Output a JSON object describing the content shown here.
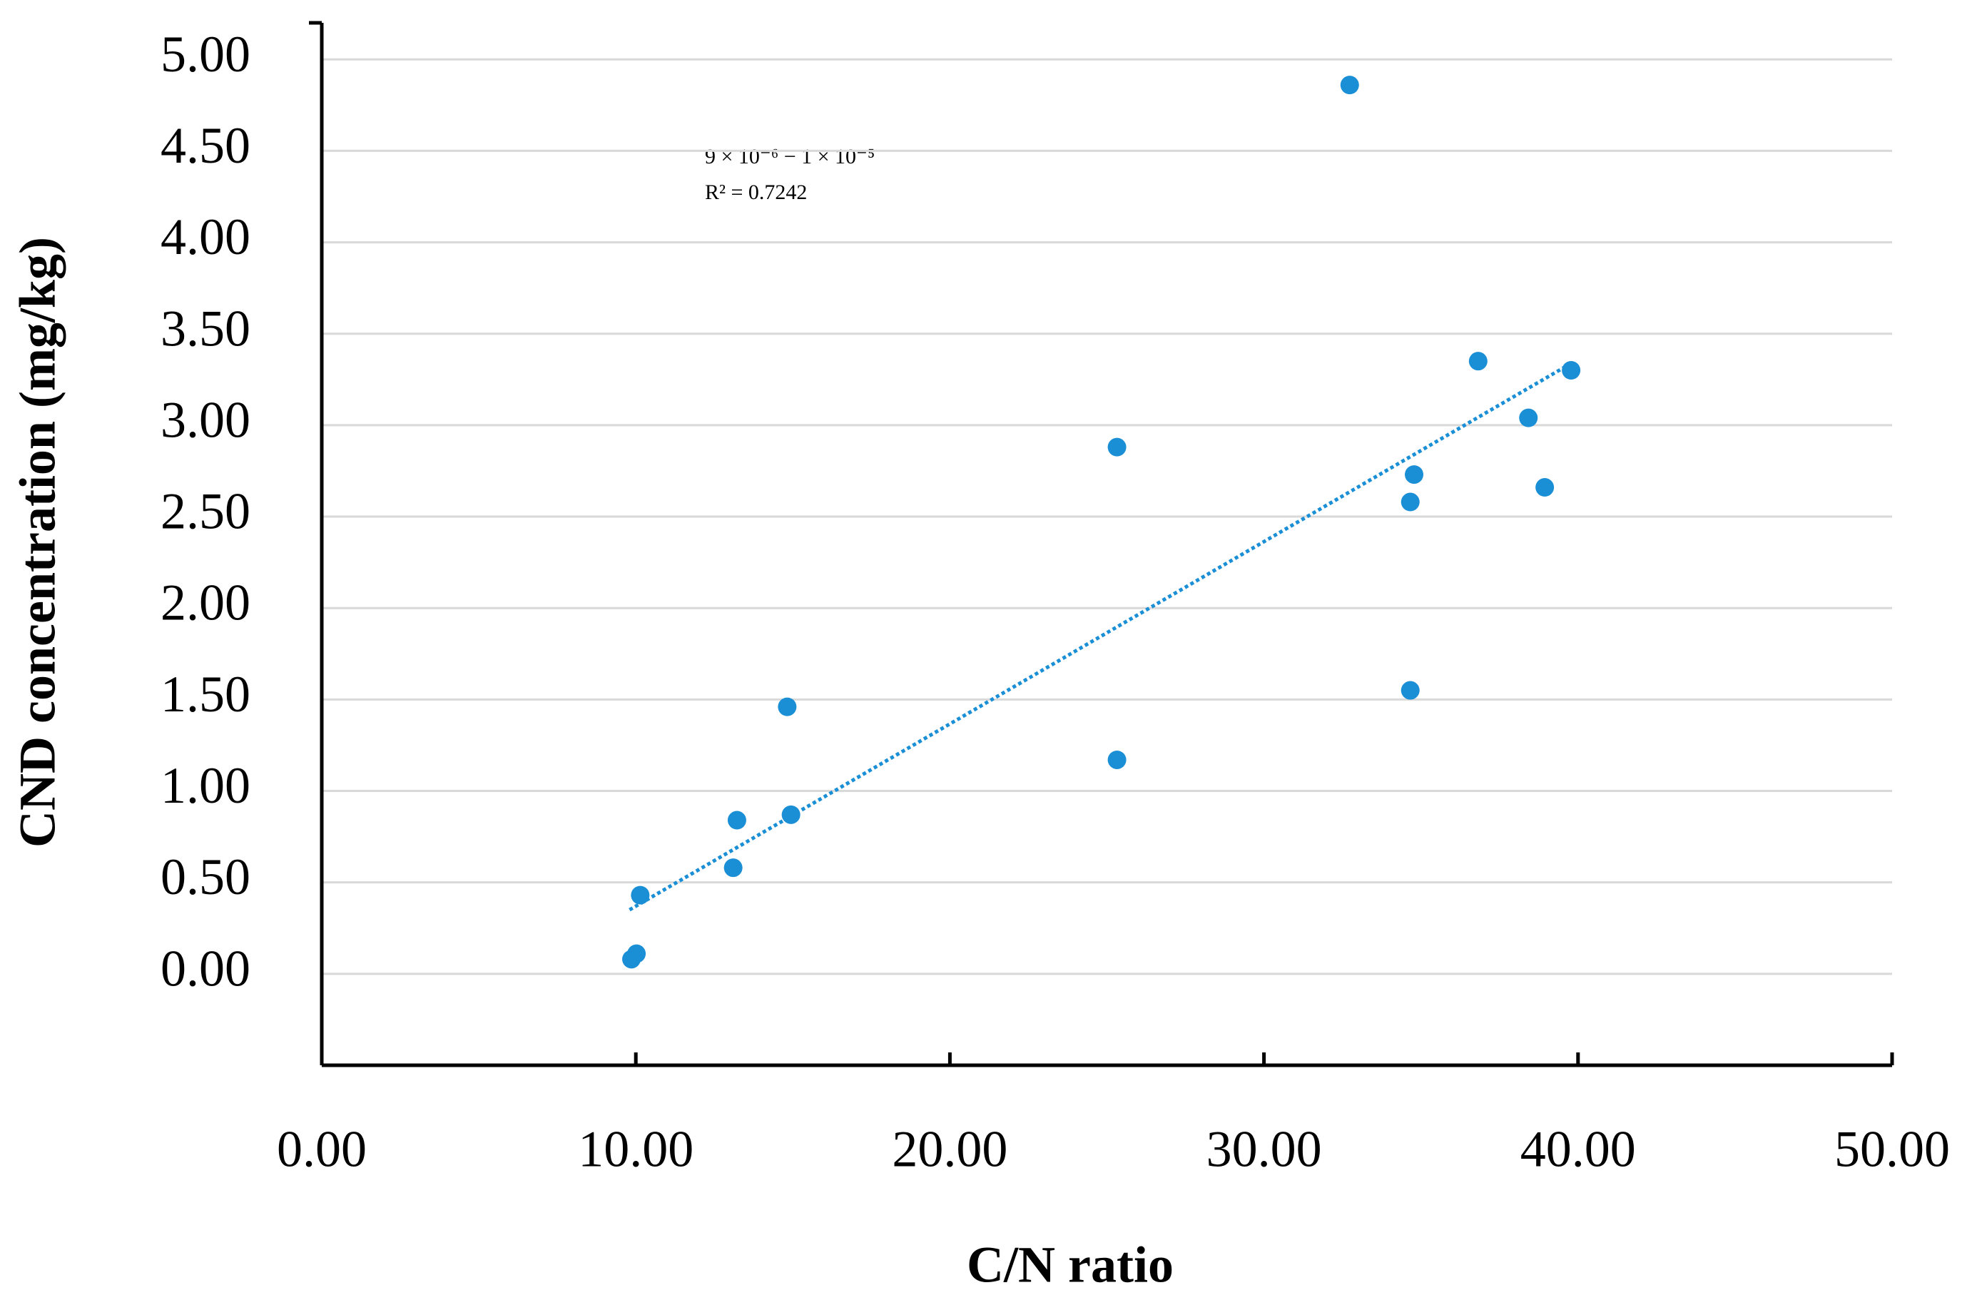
{
  "chart_data": {
    "type": "scatter",
    "xlabel": "C/N ratio",
    "ylabel": "CND concentration (mg/kg)",
    "annotations": [
      "9 × 10⁻⁶ − 1 × 10⁻⁵",
      "R² = 0.7242"
    ],
    "x": [
      9.86,
      10.02,
      10.14,
      13.1,
      13.22,
      14.82,
      14.94,
      25.32,
      25.32,
      32.73,
      34.66,
      34.66,
      34.78,
      36.82,
      38.42,
      38.94,
      39.78
    ],
    "values": [
      0.08,
      0.11,
      0.43,
      0.58,
      0.84,
      1.46,
      0.87,
      2.88,
      1.17,
      4.86,
      2.58,
      1.55,
      2.73,
      3.35,
      3.04,
      2.66,
      3.3
    ],
    "color": "#1b8fd6",
    "trendline": {
      "x": [
        9.8,
        39.6
      ],
      "y": [
        0.35,
        3.32
      ]
    },
    "xlim": [
      0,
      50
    ],
    "xticks": [
      {
        "value": 0,
        "label": "0.00"
      },
      {
        "value": 10,
        "label": "10.00"
      },
      {
        "value": 20,
        "label": "20.00"
      },
      {
        "value": 30,
        "label": "30.00"
      },
      {
        "value": 40,
        "label": "40.00"
      },
      {
        "value": 50,
        "label": "50.00"
      }
    ],
    "ylim": [
      -0.5,
      5.2
    ],
    "yticks": [
      {
        "value": 0,
        "label": "0.00"
      },
      {
        "value": 0.5,
        "label": "0.50"
      },
      {
        "value": 1,
        "label": "1.00"
      },
      {
        "value": 1.5,
        "label": "1.50"
      },
      {
        "value": 2,
        "label": "2.00"
      },
      {
        "value": 2.5,
        "label": "2.50"
      },
      {
        "value": 3,
        "label": "3.00"
      },
      {
        "value": 3.5,
        "label": "3.50"
      },
      {
        "value": 4,
        "label": "4.00"
      },
      {
        "value": 4.5,
        "label": "4.50"
      },
      {
        "value": 5,
        "label": "5.00"
      }
    ],
    "grid": true
  }
}
